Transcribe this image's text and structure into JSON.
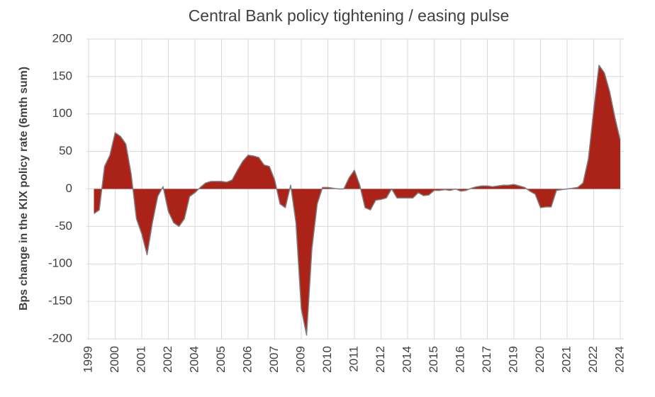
{
  "chart_data": {
    "type": "area",
    "title": "Central Bank policy tightening / easing pulse",
    "y_label": "Bps change in the KIX policy rate (6mth sum)",
    "color": "#aa2218",
    "line_color": "#7f7f7f",
    "grid": true,
    "ylim": [
      -200,
      200
    ],
    "yticks": [
      -200,
      -150,
      -100,
      -50,
      0,
      50,
      100,
      150,
      200
    ],
    "categories": [
      "1999",
      null,
      null,
      null,
      null,
      "2000",
      null,
      null,
      null,
      null,
      "2001",
      null,
      null,
      null,
      null,
      "2002",
      null,
      null,
      null,
      null,
      "2004",
      null,
      null,
      null,
      null,
      "2005",
      null,
      null,
      null,
      null,
      "2006",
      null,
      null,
      null,
      null,
      "2007",
      null,
      null,
      null,
      null,
      "2009",
      null,
      null,
      null,
      null,
      "2010",
      null,
      null,
      null,
      null,
      "2011",
      null,
      null,
      null,
      null,
      "2012",
      null,
      null,
      null,
      null,
      "2014",
      null,
      null,
      null,
      null,
      "2015",
      null,
      null,
      null,
      null,
      "2016",
      null,
      null,
      null,
      null,
      "2017",
      null,
      null,
      null,
      null,
      "2019",
      null,
      null,
      null,
      null,
      "2020",
      null,
      null,
      null,
      null,
      "2021",
      null,
      null,
      null,
      null,
      "2022",
      null,
      null,
      null,
      null,
      "2024"
    ],
    "values": [
      null,
      -33,
      -28,
      30,
      45,
      75,
      70,
      60,
      20,
      -40,
      -60,
      -88,
      -45,
      -10,
      3,
      -30,
      -45,
      -50,
      -40,
      -10,
      -5,
      2,
      8,
      10,
      10,
      10,
      9,
      12,
      25,
      37,
      45,
      44,
      42,
      32,
      30,
      12,
      -20,
      -25,
      5,
      -45,
      -160,
      -195,
      -80,
      -20,
      2,
      2,
      1,
      0,
      0,
      15,
      25,
      5,
      -25,
      -28,
      -15,
      -14,
      -12,
      0,
      -12,
      -12,
      -12,
      -12,
      -5,
      -9,
      -8,
      -2,
      -2,
      -1,
      -2,
      0,
      -3,
      -2,
      1,
      3,
      4,
      4,
      3,
      4,
      5,
      5,
      6,
      4,
      2,
      -3,
      -7,
      -25,
      -24,
      -24,
      -2,
      -1,
      0,
      1,
      2,
      8,
      40,
      105,
      165,
      155,
      130,
      95,
      65
    ]
  }
}
